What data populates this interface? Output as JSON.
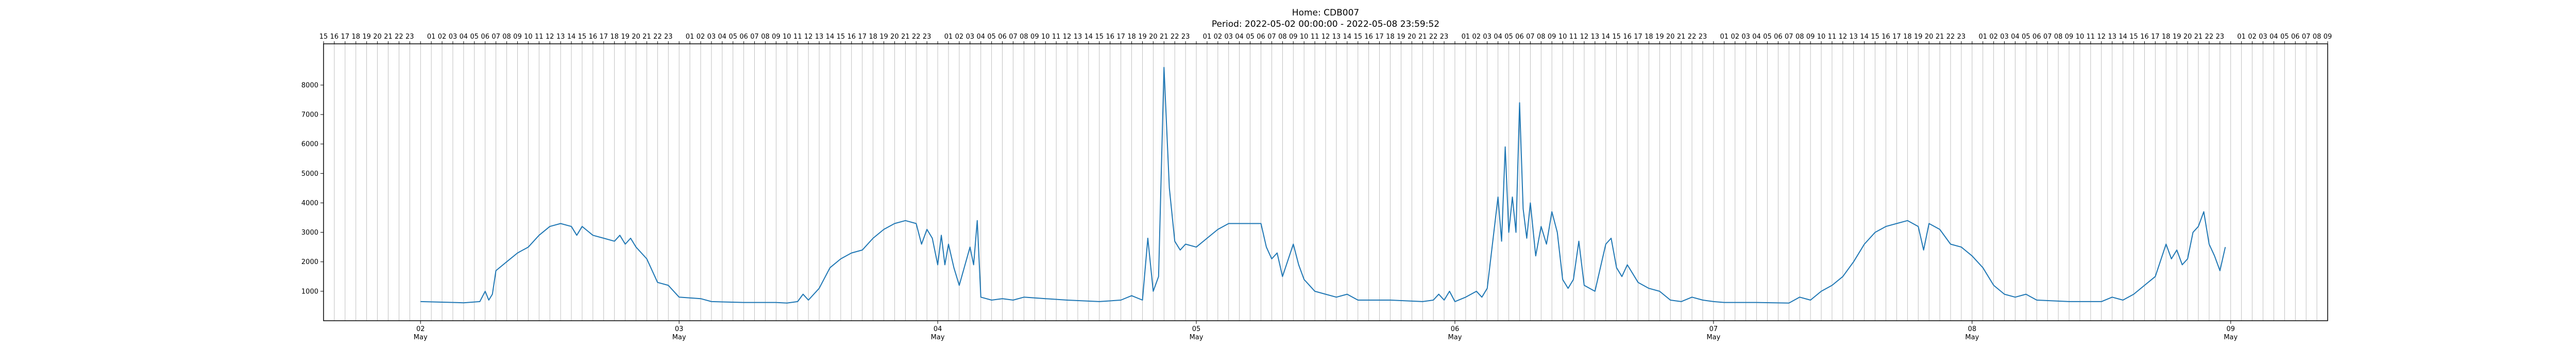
{
  "chart_data": {
    "type": "line",
    "title": "Home: CDB007",
    "subtitle": "Period: 2022-05-02 00:00:00 - 2022-05-08 23:59:52",
    "xlabel": "",
    "ylabel": "",
    "ylim": [
      0,
      9400
    ],
    "xlim": [
      "2022-05-01 15:00",
      "2022-05-09 09:00"
    ],
    "y_ticks": [
      1000,
      2000,
      3000,
      4000,
      5000,
      6000,
      7000,
      8000
    ],
    "x_major_ticks": [
      {
        "date": "2022-05-02",
        "day": "02",
        "month": "May"
      },
      {
        "date": "2022-05-03",
        "day": "03",
        "month": "May"
      },
      {
        "date": "2022-05-04",
        "day": "04",
        "month": "May"
      },
      {
        "date": "2022-05-05",
        "day": "05",
        "month": "May"
      },
      {
        "date": "2022-05-06",
        "day": "06",
        "month": "May"
      },
      {
        "date": "2022-05-07",
        "day": "07",
        "month": "May"
      },
      {
        "date": "2022-05-08",
        "day": "08",
        "month": "May"
      },
      {
        "date": "2022-05-09",
        "day": "09",
        "month": "May"
      }
    ],
    "top_axis": "hour of day (00-23), vertical grid line at every hour",
    "grid": "vertical hourly lines",
    "legend": "none",
    "series": [
      {
        "color": "#1f77b4",
        "points": [
          [
            "2022-05-02 00:00",
            650
          ],
          [
            "2022-05-02 02:00",
            630
          ],
          [
            "2022-05-02 04:00",
            610
          ],
          [
            "2022-05-02 05:30",
            650
          ],
          [
            "2022-05-02 06:00",
            1000
          ],
          [
            "2022-05-02 06:20",
            700
          ],
          [
            "2022-05-02 06:40",
            900
          ],
          [
            "2022-05-02 07:00",
            1700
          ],
          [
            "2022-05-02 08:00",
            2000
          ],
          [
            "2022-05-02 09:00",
            2300
          ],
          [
            "2022-05-02 10:00",
            2500
          ],
          [
            "2022-05-02 11:00",
            2900
          ],
          [
            "2022-05-02 12:00",
            3200
          ],
          [
            "2022-05-02 13:00",
            3300
          ],
          [
            "2022-05-02 14:00",
            3200
          ],
          [
            "2022-05-02 14:30",
            2900
          ],
          [
            "2022-05-02 15:00",
            3200
          ],
          [
            "2022-05-02 16:00",
            2900
          ],
          [
            "2022-05-02 17:00",
            2800
          ],
          [
            "2022-05-02 18:00",
            2700
          ],
          [
            "2022-05-02 18:30",
            2900
          ],
          [
            "2022-05-02 19:00",
            2600
          ],
          [
            "2022-05-02 19:30",
            2800
          ],
          [
            "2022-05-02 20:00",
            2500
          ],
          [
            "2022-05-02 21:00",
            2100
          ],
          [
            "2022-05-02 22:00",
            1300
          ],
          [
            "2022-05-02 23:00",
            1200
          ],
          [
            "2022-05-03 00:00",
            800
          ],
          [
            "2022-05-03 02:00",
            750
          ],
          [
            "2022-05-03 03:00",
            650
          ],
          [
            "2022-05-03 06:00",
            620
          ],
          [
            "2022-05-03 09:00",
            620
          ],
          [
            "2022-05-03 10:00",
            600
          ],
          [
            "2022-05-03 11:00",
            650
          ],
          [
            "2022-05-03 11:30",
            900
          ],
          [
            "2022-05-03 12:00",
            700
          ],
          [
            "2022-05-03 13:00",
            1100
          ],
          [
            "2022-05-03 14:00",
            1800
          ],
          [
            "2022-05-03 15:00",
            2100
          ],
          [
            "2022-05-03 16:00",
            2300
          ],
          [
            "2022-05-03 17:00",
            2400
          ],
          [
            "2022-05-03 18:00",
            2800
          ],
          [
            "2022-05-03 19:00",
            3100
          ],
          [
            "2022-05-03 20:00",
            3300
          ],
          [
            "2022-05-03 21:00",
            3400
          ],
          [
            "2022-05-03 22:00",
            3300
          ],
          [
            "2022-05-03 22:30",
            2600
          ],
          [
            "2022-05-03 23:00",
            3100
          ],
          [
            "2022-05-03 23:30",
            2800
          ],
          [
            "2022-05-04 00:00",
            1900
          ],
          [
            "2022-05-04 00:20",
            2900
          ],
          [
            "2022-05-04 00:40",
            1900
          ],
          [
            "2022-05-04 01:00",
            2600
          ],
          [
            "2022-05-04 01:30",
            1800
          ],
          [
            "2022-05-04 02:00",
            1200
          ],
          [
            "2022-05-04 03:00",
            2500
          ],
          [
            "2022-05-04 03:20",
            1900
          ],
          [
            "2022-05-04 03:40",
            3400
          ],
          [
            "2022-05-04 04:00",
            800
          ],
          [
            "2022-05-04 05:00",
            700
          ],
          [
            "2022-05-04 06:00",
            750
          ],
          [
            "2022-05-04 07:00",
            700
          ],
          [
            "2022-05-04 08:00",
            800
          ],
          [
            "2022-05-04 10:00",
            750
          ],
          [
            "2022-05-04 12:00",
            700
          ],
          [
            "2022-05-04 15:00",
            650
          ],
          [
            "2022-05-04 17:00",
            700
          ],
          [
            "2022-05-04 18:00",
            850
          ],
          [
            "2022-05-04 19:00",
            700
          ],
          [
            "2022-05-04 19:30",
            2800
          ],
          [
            "2022-05-04 20:00",
            1000
          ],
          [
            "2022-05-04 20:30",
            1500
          ],
          [
            "2022-05-04 21:00",
            8600
          ],
          [
            "2022-05-04 21:30",
            4500
          ],
          [
            "2022-05-04 22:00",
            2700
          ],
          [
            "2022-05-04 22:30",
            2400
          ],
          [
            "2022-05-04 23:00",
            2600
          ],
          [
            "2022-05-05 00:00",
            2500
          ],
          [
            "2022-05-05 01:00",
            2800
          ],
          [
            "2022-05-05 02:00",
            3100
          ],
          [
            "2022-05-05 03:00",
            3300
          ],
          [
            "2022-05-05 05:00",
            3300
          ],
          [
            "2022-05-05 06:00",
            3300
          ],
          [
            "2022-05-05 06:30",
            2500
          ],
          [
            "2022-05-05 07:00",
            2100
          ],
          [
            "2022-05-05 07:30",
            2300
          ],
          [
            "2022-05-05 08:00",
            1500
          ],
          [
            "2022-05-05 09:00",
            2600
          ],
          [
            "2022-05-05 09:30",
            1900
          ],
          [
            "2022-05-05 10:00",
            1400
          ],
          [
            "2022-05-05 11:00",
            1000
          ],
          [
            "2022-05-05 12:00",
            900
          ],
          [
            "2022-05-05 13:00",
            800
          ],
          [
            "2022-05-05 14:00",
            900
          ],
          [
            "2022-05-05 15:00",
            700
          ],
          [
            "2022-05-05 16:00",
            700
          ],
          [
            "2022-05-05 18:00",
            700
          ],
          [
            "2022-05-05 21:00",
            650
          ],
          [
            "2022-05-05 22:00",
            700
          ],
          [
            "2022-05-05 22:30",
            900
          ],
          [
            "2022-05-05 23:00",
            700
          ],
          [
            "2022-05-05 23:30",
            1000
          ],
          [
            "2022-05-06 00:00",
            650
          ],
          [
            "2022-05-06 01:00",
            800
          ],
          [
            "2022-05-06 02:00",
            1000
          ],
          [
            "2022-05-06 02:30",
            800
          ],
          [
            "2022-05-06 03:00",
            1100
          ],
          [
            "2022-05-06 04:00",
            4200
          ],
          [
            "2022-05-06 04:20",
            2700
          ],
          [
            "2022-05-06 04:40",
            5900
          ],
          [
            "2022-05-06 05:00",
            3000
          ],
          [
            "2022-05-06 05:20",
            4200
          ],
          [
            "2022-05-06 05:40",
            3000
          ],
          [
            "2022-05-06 06:00",
            7400
          ],
          [
            "2022-05-06 06:20",
            3800
          ],
          [
            "2022-05-06 06:40",
            2800
          ],
          [
            "2022-05-06 07:00",
            4000
          ],
          [
            "2022-05-06 07:30",
            2200
          ],
          [
            "2022-05-06 08:00",
            3200
          ],
          [
            "2022-05-06 08:30",
            2600
          ],
          [
            "2022-05-06 09:00",
            3700
          ],
          [
            "2022-05-06 09:30",
            3000
          ],
          [
            "2022-05-06 10:00",
            1400
          ],
          [
            "2022-05-06 10:30",
            1100
          ],
          [
            "2022-05-06 11:00",
            1400
          ],
          [
            "2022-05-06 11:30",
            2700
          ],
          [
            "2022-05-06 12:00",
            1200
          ],
          [
            "2022-05-06 13:00",
            1000
          ],
          [
            "2022-05-06 14:00",
            2600
          ],
          [
            "2022-05-06 14:30",
            2800
          ],
          [
            "2022-05-06 15:00",
            1800
          ],
          [
            "2022-05-06 15:30",
            1500
          ],
          [
            "2022-05-06 16:00",
            1900
          ],
          [
            "2022-05-06 17:00",
            1300
          ],
          [
            "2022-05-06 18:00",
            1100
          ],
          [
            "2022-05-06 19:00",
            1000
          ],
          [
            "2022-05-06 20:00",
            700
          ],
          [
            "2022-05-06 21:00",
            650
          ],
          [
            "2022-05-06 22:00",
            800
          ],
          [
            "2022-05-06 23:00",
            700
          ],
          [
            "2022-05-07 00:00",
            650
          ],
          [
            "2022-05-07 01:00",
            620
          ],
          [
            "2022-05-07 04:00",
            620
          ],
          [
            "2022-05-07 07:00",
            600
          ],
          [
            "2022-05-07 08:00",
            800
          ],
          [
            "2022-05-07 09:00",
            700
          ],
          [
            "2022-05-07 10:00",
            1000
          ],
          [
            "2022-05-07 11:00",
            1200
          ],
          [
            "2022-05-07 12:00",
            1500
          ],
          [
            "2022-05-07 13:00",
            2000
          ],
          [
            "2022-05-07 14:00",
            2600
          ],
          [
            "2022-05-07 15:00",
            3000
          ],
          [
            "2022-05-07 16:00",
            3200
          ],
          [
            "2022-05-07 17:00",
            3300
          ],
          [
            "2022-05-07 18:00",
            3400
          ],
          [
            "2022-05-07 19:00",
            3200
          ],
          [
            "2022-05-07 19:30",
            2400
          ],
          [
            "2022-05-07 20:00",
            3300
          ],
          [
            "2022-05-07 21:00",
            3100
          ],
          [
            "2022-05-07 22:00",
            2600
          ],
          [
            "2022-05-07 23:00",
            2500
          ],
          [
            "2022-05-08 00:00",
            2200
          ],
          [
            "2022-05-08 01:00",
            1800
          ],
          [
            "2022-05-08 02:00",
            1200
          ],
          [
            "2022-05-08 03:00",
            900
          ],
          [
            "2022-05-08 04:00",
            800
          ],
          [
            "2022-05-08 05:00",
            900
          ],
          [
            "2022-05-08 06:00",
            700
          ],
          [
            "2022-05-08 09:00",
            650
          ],
          [
            "2022-05-08 12:00",
            650
          ],
          [
            "2022-05-08 13:00",
            800
          ],
          [
            "2022-05-08 14:00",
            700
          ],
          [
            "2022-05-08 15:00",
            900
          ],
          [
            "2022-05-08 16:00",
            1200
          ],
          [
            "2022-05-08 17:00",
            1500
          ],
          [
            "2022-05-08 18:00",
            2600
          ],
          [
            "2022-05-08 18:30",
            2100
          ],
          [
            "2022-05-08 19:00",
            2400
          ],
          [
            "2022-05-08 19:30",
            1900
          ],
          [
            "2022-05-08 20:00",
            2100
          ],
          [
            "2022-05-08 20:30",
            3000
          ],
          [
            "2022-05-08 21:00",
            3200
          ],
          [
            "2022-05-08 21:30",
            3700
          ],
          [
            "2022-05-08 22:00",
            2600
          ],
          [
            "2022-05-08 22:30",
            2200
          ],
          [
            "2022-05-08 23:00",
            1700
          ],
          [
            "2022-05-08 23:30",
            2500
          ]
        ]
      }
    ]
  }
}
